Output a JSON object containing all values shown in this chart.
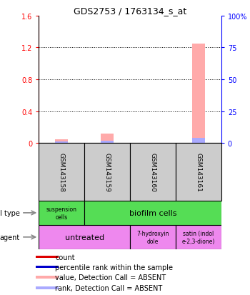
{
  "title": "GDS2753 / 1763134_s_at",
  "samples": [
    "GSM143158",
    "GSM143159",
    "GSM143160",
    "GSM143161"
  ],
  "value_data": [
    0.05,
    0.12,
    0.005,
    1.25
  ],
  "rank_data": [
    0.018,
    0.025,
    0.004,
    0.065
  ],
  "ylim_left": [
    0,
    1.6
  ],
  "ylim_right": [
    0,
    100
  ],
  "yticks_left": [
    0,
    0.4,
    0.8,
    1.2,
    1.6
  ],
  "yticks_right": [
    0,
    25,
    50,
    75,
    100
  ],
  "value_color_absent": "#ffaaaa",
  "rank_color_absent": "#aaaaff",
  "count_color": "#dd0000",
  "rank_present_color": "#0000cc",
  "sample_box_color": "#cccccc",
  "cell_type_green": "#55dd55",
  "agent_pink": "#ee88ee",
  "legend_items": [
    {
      "color": "#dd0000",
      "label": "count"
    },
    {
      "color": "#0000cc",
      "label": "percentile rank within the sample"
    },
    {
      "color": "#ffaaaa",
      "label": "value, Detection Call = ABSENT"
    },
    {
      "color": "#aaaaff",
      "label": "rank, Detection Call = ABSENT"
    }
  ]
}
